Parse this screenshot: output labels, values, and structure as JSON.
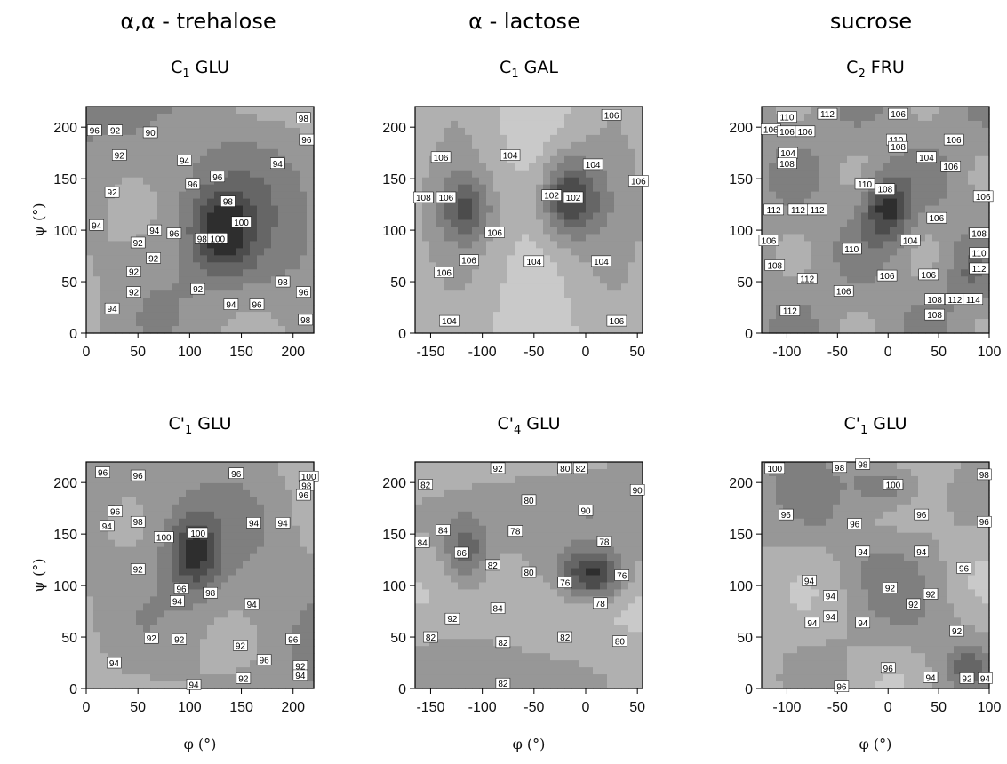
{
  "columns": [
    {
      "title": "α,α - trehalose"
    },
    {
      "title": "α - lactose"
    },
    {
      "title": "sucrose"
    }
  ],
  "chart_data": [
    {
      "type": "heatmap",
      "panel": "trehalose-top",
      "title_main": "C",
      "title_sub": "1",
      "title_rest": " GLU",
      "xlabel": "",
      "ylabel": "ψ (°)",
      "xlim": [
        0,
        220
      ],
      "ylim": [
        0,
        220
      ],
      "xticks": [
        0,
        50,
        100,
        150,
        200
      ],
      "yticks": [
        0,
        50,
        100,
        150,
        200
      ],
      "contour_labels": [
        {
          "x": 8,
          "y": 197,
          "text": "96"
        },
        {
          "x": 28,
          "y": 197,
          "text": "92"
        },
        {
          "x": 62,
          "y": 195,
          "text": "90"
        },
        {
          "x": 32,
          "y": 173,
          "text": "92"
        },
        {
          "x": 95,
          "y": 168,
          "text": "94"
        },
        {
          "x": 210,
          "y": 209,
          "text": "98"
        },
        {
          "x": 213,
          "y": 188,
          "text": "96"
        },
        {
          "x": 185,
          "y": 165,
          "text": "94"
        },
        {
          "x": 25,
          "y": 137,
          "text": "92"
        },
        {
          "x": 103,
          "y": 145,
          "text": "96"
        },
        {
          "x": 127,
          "y": 152,
          "text": "96"
        },
        {
          "x": 137,
          "y": 128,
          "text": "98"
        },
        {
          "x": 150,
          "y": 108,
          "text": "100"
        },
        {
          "x": 10,
          "y": 105,
          "text": "94"
        },
        {
          "x": 66,
          "y": 100,
          "text": "94"
        },
        {
          "x": 85,
          "y": 97,
          "text": "96"
        },
        {
          "x": 112,
          "y": 92,
          "text": "98"
        },
        {
          "x": 127,
          "y": 92,
          "text": "100"
        },
        {
          "x": 50,
          "y": 88,
          "text": "92"
        },
        {
          "x": 65,
          "y": 73,
          "text": "92"
        },
        {
          "x": 46,
          "y": 60,
          "text": "92"
        },
        {
          "x": 108,
          "y": 43,
          "text": "92"
        },
        {
          "x": 46,
          "y": 40,
          "text": "92"
        },
        {
          "x": 190,
          "y": 50,
          "text": "98"
        },
        {
          "x": 210,
          "y": 40,
          "text": "96"
        },
        {
          "x": 25,
          "y": 24,
          "text": "94"
        },
        {
          "x": 140,
          "y": 28,
          "text": "94"
        },
        {
          "x": 165,
          "y": 28,
          "text": "96"
        },
        {
          "x": 212,
          "y": 13,
          "text": "98"
        }
      ]
    },
    {
      "type": "heatmap",
      "panel": "lactose-top",
      "title_main": "C",
      "title_sub": "1",
      "title_rest": " GAL",
      "xlabel": "",
      "ylabel": "",
      "xlim": [
        -165,
        55
      ],
      "ylim": [
        0,
        220
      ],
      "xticks": [
        -150,
        -100,
        -50,
        0,
        50
      ],
      "yticks": [
        0,
        50,
        100,
        150,
        200
      ],
      "contour_labels": [
        {
          "x": 25,
          "y": 212,
          "text": "106"
        },
        {
          "x": -140,
          "y": 171,
          "text": "106"
        },
        {
          "x": -73,
          "y": 173,
          "text": "104"
        },
        {
          "x": 7,
          "y": 164,
          "text": "104"
        },
        {
          "x": 51,
          "y": 148,
          "text": "106"
        },
        {
          "x": -157,
          "y": 132,
          "text": "108"
        },
        {
          "x": -135,
          "y": 132,
          "text": "106"
        },
        {
          "x": -33,
          "y": 134,
          "text": "102"
        },
        {
          "x": -12,
          "y": 132,
          "text": "102"
        },
        {
          "x": -88,
          "y": 98,
          "text": "106"
        },
        {
          "x": -113,
          "y": 71,
          "text": "106"
        },
        {
          "x": -50,
          "y": 70,
          "text": "104"
        },
        {
          "x": 15,
          "y": 70,
          "text": "104"
        },
        {
          "x": -137,
          "y": 59,
          "text": "106"
        },
        {
          "x": -132,
          "y": 12,
          "text": "104"
        },
        {
          "x": 30,
          "y": 12,
          "text": "106"
        }
      ]
    },
    {
      "type": "heatmap",
      "panel": "sucrose-top",
      "title_main": "C",
      "title_sub": "2",
      "title_rest": " FRU",
      "xlabel": "",
      "ylabel": "",
      "xlim": [
        -125,
        100
      ],
      "ylim": [
        0,
        220
      ],
      "xticks": [
        -100,
        -50,
        0,
        50,
        100
      ],
      "yticks": [
        0,
        50,
        100,
        150,
        200
      ],
      "contour_labels": [
        {
          "x": -100,
          "y": 210,
          "text": "110"
        },
        {
          "x": -60,
          "y": 213,
          "text": "112"
        },
        {
          "x": 10,
          "y": 213,
          "text": "106"
        },
        {
          "x": -116,
          "y": 198,
          "text": "106"
        },
        {
          "x": -100,
          "y": 196,
          "text": "106"
        },
        {
          "x": -82,
          "y": 196,
          "text": "106"
        },
        {
          "x": 8,
          "y": 188,
          "text": "110"
        },
        {
          "x": 10,
          "y": 181,
          "text": "108"
        },
        {
          "x": -99,
          "y": 175,
          "text": "104"
        },
        {
          "x": -100,
          "y": 165,
          "text": "108"
        },
        {
          "x": 38,
          "y": 171,
          "text": "104"
        },
        {
          "x": 65,
          "y": 188,
          "text": "106"
        },
        {
          "x": 62,
          "y": 162,
          "text": "106"
        },
        {
          "x": -23,
          "y": 145,
          "text": "110"
        },
        {
          "x": -3,
          "y": 140,
          "text": "108"
        },
        {
          "x": 94,
          "y": 133,
          "text": "106"
        },
        {
          "x": -113,
          "y": 120,
          "text": "112"
        },
        {
          "x": -89,
          "y": 120,
          "text": "112"
        },
        {
          "x": -70,
          "y": 120,
          "text": "112"
        },
        {
          "x": 48,
          "y": 112,
          "text": "106"
        },
        {
          "x": 90,
          "y": 97,
          "text": "108"
        },
        {
          "x": 22,
          "y": 90,
          "text": "104"
        },
        {
          "x": -118,
          "y": 90,
          "text": "106"
        },
        {
          "x": -36,
          "y": 82,
          "text": "110"
        },
        {
          "x": 90,
          "y": 78,
          "text": "110"
        },
        {
          "x": -112,
          "y": 66,
          "text": "108"
        },
        {
          "x": 90,
          "y": 63,
          "text": "112"
        },
        {
          "x": -80,
          "y": 53,
          "text": "112"
        },
        {
          "x": -1,
          "y": 56,
          "text": "106"
        },
        {
          "x": 40,
          "y": 57,
          "text": "106"
        },
        {
          "x": -44,
          "y": 41,
          "text": "106"
        },
        {
          "x": 46,
          "y": 33,
          "text": "108"
        },
        {
          "x": 66,
          "y": 33,
          "text": "112"
        },
        {
          "x": 84,
          "y": 33,
          "text": "114"
        },
        {
          "x": -97,
          "y": 22,
          "text": "112"
        },
        {
          "x": 46,
          "y": 18,
          "text": "108"
        }
      ]
    },
    {
      "type": "heatmap",
      "panel": "trehalose-bottom",
      "title_main": "C",
      "title_sup": "'",
      "title_sub": "1",
      "title_rest": " GLU",
      "xlabel": "φ (°)",
      "ylabel": "ψ (°)",
      "xlim": [
        0,
        220
      ],
      "ylim": [
        0,
        220
      ],
      "xticks": [
        0,
        50,
        100,
        150,
        200
      ],
      "yticks": [
        0,
        50,
        100,
        150,
        200
      ],
      "contour_labels": [
        {
          "x": 16,
          "y": 210,
          "text": "96"
        },
        {
          "x": 50,
          "y": 207,
          "text": "96"
        },
        {
          "x": 145,
          "y": 209,
          "text": "96"
        },
        {
          "x": 215,
          "y": 206,
          "text": "100"
        },
        {
          "x": 213,
          "y": 197,
          "text": "98"
        },
        {
          "x": 210,
          "y": 188,
          "text": "96"
        },
        {
          "x": 28,
          "y": 172,
          "text": "96"
        },
        {
          "x": 50,
          "y": 162,
          "text": "98"
        },
        {
          "x": 20,
          "y": 158,
          "text": "94"
        },
        {
          "x": 162,
          "y": 161,
          "text": "94"
        },
        {
          "x": 190,
          "y": 161,
          "text": "94"
        },
        {
          "x": 75,
          "y": 147,
          "text": "100"
        },
        {
          "x": 108,
          "y": 151,
          "text": "100"
        },
        {
          "x": 50,
          "y": 116,
          "text": "92"
        },
        {
          "x": 92,
          "y": 97,
          "text": "96"
        },
        {
          "x": 120,
          "y": 93,
          "text": "98"
        },
        {
          "x": 88,
          "y": 85,
          "text": "94"
        },
        {
          "x": 160,
          "y": 82,
          "text": "94"
        },
        {
          "x": 63,
          "y": 49,
          "text": "92"
        },
        {
          "x": 90,
          "y": 48,
          "text": "92"
        },
        {
          "x": 149,
          "y": 42,
          "text": "92"
        },
        {
          "x": 172,
          "y": 28,
          "text": "96"
        },
        {
          "x": 200,
          "y": 48,
          "text": "96"
        },
        {
          "x": 27,
          "y": 25,
          "text": "94"
        },
        {
          "x": 207,
          "y": 22,
          "text": "92"
        },
        {
          "x": 207,
          "y": 13,
          "text": "94"
        },
        {
          "x": 104,
          "y": 4,
          "text": "94"
        },
        {
          "x": 152,
          "y": 10,
          "text": "92"
        }
      ]
    },
    {
      "type": "heatmap",
      "panel": "lactose-bottom",
      "title_main": "C",
      "title_sup": "'",
      "title_sub": "4",
      "title_rest": " GLU",
      "xlabel": "φ (°)",
      "ylabel": "",
      "xlim": [
        -165,
        55
      ],
      "ylim": [
        0,
        220
      ],
      "xticks": [
        -150,
        -100,
        -50,
        0,
        50
      ],
      "yticks": [
        0,
        50,
        100,
        150,
        200
      ],
      "contour_labels": [
        {
          "x": -85,
          "y": 214,
          "text": "92"
        },
        {
          "x": -20,
          "y": 214,
          "text": "80"
        },
        {
          "x": -5,
          "y": 214,
          "text": "82"
        },
        {
          "x": -155,
          "y": 198,
          "text": "82"
        },
        {
          "x": 50,
          "y": 193,
          "text": "90"
        },
        {
          "x": -55,
          "y": 183,
          "text": "80"
        },
        {
          "x": 0,
          "y": 173,
          "text": "90"
        },
        {
          "x": -138,
          "y": 154,
          "text": "84"
        },
        {
          "x": -158,
          "y": 142,
          "text": "84"
        },
        {
          "x": -68,
          "y": 153,
          "text": "78"
        },
        {
          "x": 18,
          "y": 143,
          "text": "78"
        },
        {
          "x": -120,
          "y": 132,
          "text": "86"
        },
        {
          "x": -90,
          "y": 120,
          "text": "82"
        },
        {
          "x": -55,
          "y": 113,
          "text": "80"
        },
        {
          "x": -20,
          "y": 103,
          "text": "76"
        },
        {
          "x": 35,
          "y": 110,
          "text": "76"
        },
        {
          "x": 14,
          "y": 83,
          "text": "78"
        },
        {
          "x": -85,
          "y": 78,
          "text": "84"
        },
        {
          "x": -129,
          "y": 68,
          "text": "92"
        },
        {
          "x": -150,
          "y": 50,
          "text": "82"
        },
        {
          "x": -80,
          "y": 45,
          "text": "82"
        },
        {
          "x": -20,
          "y": 50,
          "text": "82"
        },
        {
          "x": 33,
          "y": 46,
          "text": "80"
        },
        {
          "x": -80,
          "y": 5,
          "text": "82"
        }
      ]
    },
    {
      "type": "heatmap",
      "panel": "sucrose-bottom",
      "title_main": "C",
      "title_sup": "'",
      "title_sub": "1",
      "title_rest": " GLU",
      "xlabel": "φ (°)",
      "ylabel": "",
      "xlim": [
        -125,
        100
      ],
      "ylim": [
        0,
        220
      ],
      "xticks": [
        -100,
        -50,
        0,
        50,
        100
      ],
      "yticks": [
        0,
        50,
        100,
        150,
        200
      ],
      "contour_labels": [
        {
          "x": -112,
          "y": 214,
          "text": "100"
        },
        {
          "x": -48,
          "y": 215,
          "text": "98"
        },
        {
          "x": -25,
          "y": 218,
          "text": "98"
        },
        {
          "x": 95,
          "y": 208,
          "text": "98"
        },
        {
          "x": 5,
          "y": 198,
          "text": "100"
        },
        {
          "x": -101,
          "y": 169,
          "text": "96"
        },
        {
          "x": 33,
          "y": 169,
          "text": "96"
        },
        {
          "x": -33,
          "y": 160,
          "text": "96"
        },
        {
          "x": 95,
          "y": 162,
          "text": "96"
        },
        {
          "x": -25,
          "y": 133,
          "text": "94"
        },
        {
          "x": 33,
          "y": 133,
          "text": "94"
        },
        {
          "x": 75,
          "y": 117,
          "text": "96"
        },
        {
          "x": -78,
          "y": 105,
          "text": "94"
        },
        {
          "x": -57,
          "y": 90,
          "text": "94"
        },
        {
          "x": 2,
          "y": 98,
          "text": "92"
        },
        {
          "x": 25,
          "y": 82,
          "text": "92"
        },
        {
          "x": 42,
          "y": 92,
          "text": "92"
        },
        {
          "x": -57,
          "y": 70,
          "text": "94"
        },
        {
          "x": -75,
          "y": 64,
          "text": "94"
        },
        {
          "x": -25,
          "y": 64,
          "text": "94"
        },
        {
          "x": 68,
          "y": 56,
          "text": "92"
        },
        {
          "x": 0,
          "y": 20,
          "text": "96"
        },
        {
          "x": 42,
          "y": 11,
          "text": "94"
        },
        {
          "x": 78,
          "y": 10,
          "text": "92"
        },
        {
          "x": 96,
          "y": 10,
          "text": "94"
        },
        {
          "x": -46,
          "y": 2,
          "text": "96"
        }
      ]
    }
  ]
}
